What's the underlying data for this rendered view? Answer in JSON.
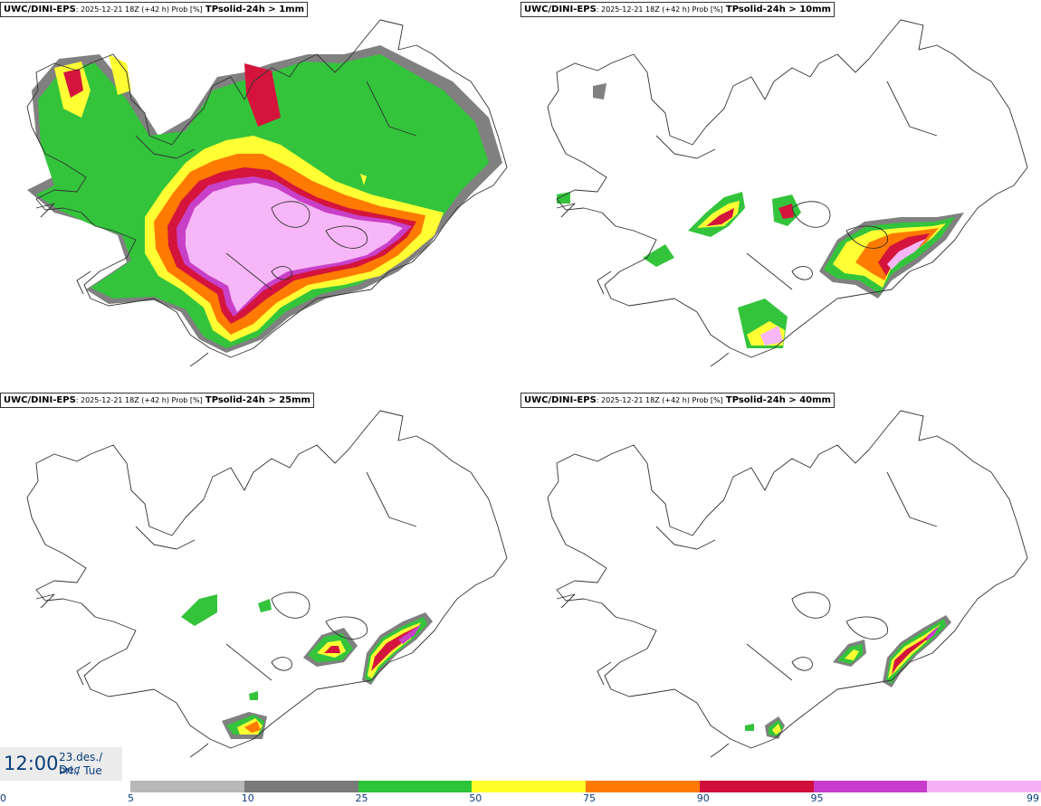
{
  "panels": [
    {
      "source": "UWC/DINI-EPS",
      "run": ": 2025-12-21 18Z (+42 h) Prob [%]",
      "field": "TPsolid-24h > 1mm"
    },
    {
      "source": "UWC/DINI-EPS",
      "run": ": 2025-12-21 18Z (+42 h) Prob [%]",
      "field": "TPsolid-24h > 10mm"
    },
    {
      "source": "UWC/DINI-EPS",
      "run": ": 2025-12-21 18Z (+42 h) Prob [%]",
      "field": "TPsolid-24h > 25mm"
    },
    {
      "source": "UWC/DINI-EPS",
      "run": ": 2025-12-21 18Z (+42 h) Prob [%]",
      "field": "TPsolid-24h > 40mm"
    }
  ],
  "time": {
    "hhmm": "12:00",
    "date": "23.des./ Dec",
    "weekday": "Þri./ Tue"
  },
  "legend": {
    "ticks": [
      "0",
      "5",
      "10",
      "25",
      "50",
      "75",
      "90",
      "95",
      "99"
    ],
    "colors": [
      "#b8b8b8",
      "#7a7a7a",
      "#2ec43a",
      "#ffff2a",
      "#ff7a00",
      "#d0103a",
      "#c83ccc",
      "#f6b0f6"
    ]
  },
  "colors": {
    "c5": "#b4b4b4",
    "c10": "#808080",
    "c25": "#33c43c",
    "c50": "#ffff33",
    "c75": "#ff7a00",
    "c90": "#d4143c",
    "c95": "#c840c8",
    "c99": "#f7b6f7"
  }
}
